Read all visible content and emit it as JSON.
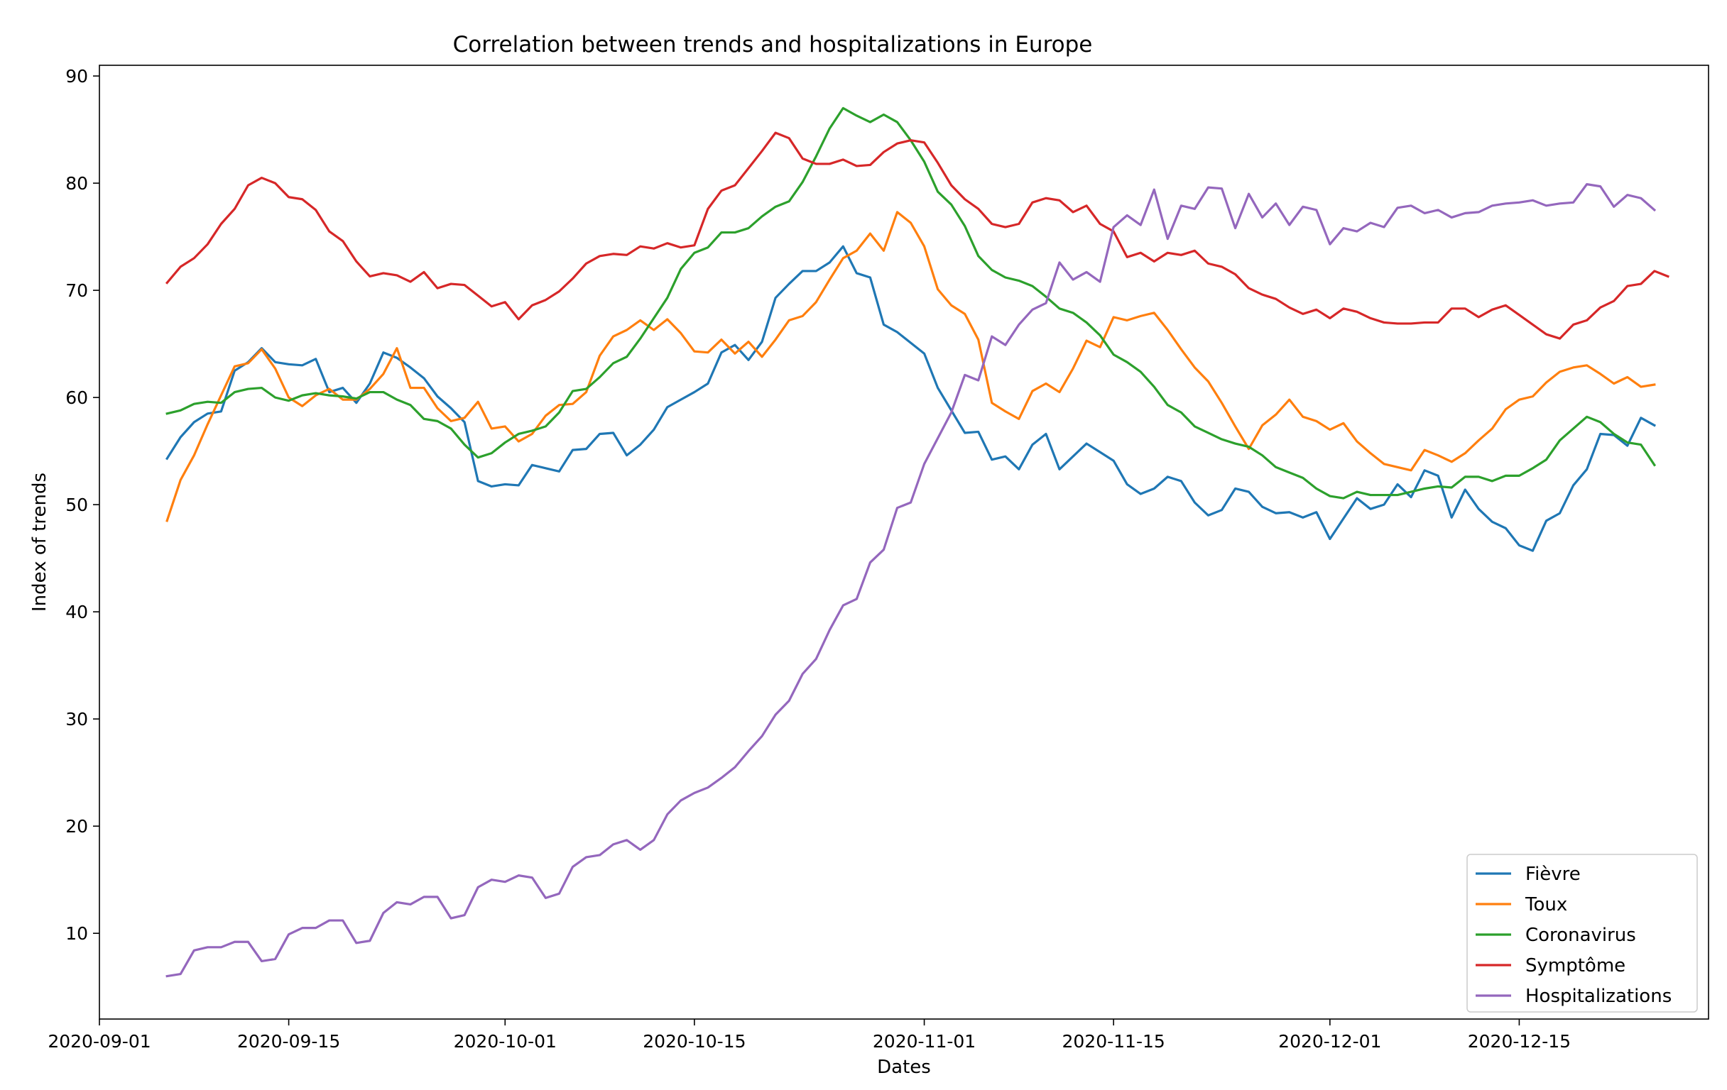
{
  "chart_data": {
    "type": "line",
    "title": "Correlation between trends and hospitalizations in Europe",
    "xlabel": "Dates",
    "ylabel": "Index of trends",
    "x_start": "2020-09-06",
    "x_end": "2020-12-23",
    "xlim": [
      "2020-09-01",
      "2020-12-29"
    ],
    "ylim": [
      2,
      91
    ],
    "x_ticks": [
      "2020-09-01",
      "2020-09-15",
      "2020-10-01",
      "2020-10-15",
      "2020-11-01",
      "2020-11-15",
      "2020-12-01",
      "2020-12-15"
    ],
    "y_ticks": [
      "10",
      "20",
      "30",
      "40",
      "50",
      "60",
      "70",
      "80",
      "90"
    ],
    "grid": false,
    "legend_position": "lower right",
    "series": [
      {
        "name": "Fièvre",
        "color": "#1f77b4",
        "values": [
          54.3,
          56.3,
          57.7,
          58.5,
          58.7,
          62.5,
          63.3,
          64.6,
          63.3,
          63.1,
          63.0,
          63.6,
          60.5,
          60.9,
          59.5,
          61.3,
          64.2,
          63.7,
          62.8,
          61.8,
          60.1,
          59.0,
          57.7,
          52.2,
          51.7,
          51.9,
          51.8,
          53.7,
          53.4,
          53.1,
          55.1,
          55.2,
          56.6,
          56.7,
          54.6,
          55.6,
          57.0,
          59.1,
          59.8,
          60.5,
          61.3,
          64.2,
          64.9,
          63.5,
          65.2,
          69.3,
          70.6,
          71.8,
          71.8,
          72.6,
          74.1,
          71.6,
          71.2,
          66.8,
          66.1,
          65.1,
          64.1,
          60.9,
          58.8,
          56.7,
          56.8,
          54.2,
          54.5,
          53.3,
          55.6,
          56.6,
          53.3,
          54.5,
          55.7,
          54.9,
          54.1,
          51.9,
          51.0,
          51.5,
          52.6,
          52.2,
          50.2,
          49.0,
          49.5,
          51.5,
          51.2,
          49.8,
          49.2,
          49.3,
          48.8,
          49.3,
          46.8,
          48.7,
          50.6,
          49.6,
          50.0,
          51.9,
          50.7,
          53.2,
          52.7,
          48.8,
          51.4,
          49.6,
          48.4,
          47.8,
          46.2,
          45.7,
          48.5,
          49.2,
          51.8,
          53.3,
          56.6,
          56.5,
          55.5,
          58.1,
          57.4
        ]
      },
      {
        "name": "Toux",
        "color": "#ff7f0e",
        "values": [
          48.5,
          52.3,
          54.6,
          57.5,
          60.2,
          62.9,
          63.2,
          64.5,
          62.7,
          60.0,
          59.2,
          60.2,
          60.8,
          59.8,
          59.8,
          60.8,
          62.2,
          64.6,
          60.9,
          60.9,
          59.0,
          57.8,
          58.1,
          59.6,
          57.1,
          57.3,
          55.9,
          56.6,
          58.3,
          59.3,
          59.4,
          60.5,
          63.9,
          65.7,
          66.3,
          67.2,
          66.3,
          67.3,
          66.0,
          64.3,
          64.2,
          65.4,
          64.1,
          65.2,
          63.8,
          65.4,
          67.2,
          67.6,
          68.9,
          71.0,
          73.0,
          73.7,
          75.3,
          73.7,
          77.3,
          76.3,
          74.1,
          70.1,
          68.6,
          67.8,
          65.4,
          59.5,
          58.7,
          58.0,
          60.6,
          61.3,
          60.5,
          62.7,
          65.3,
          64.7,
          67.5,
          67.2,
          67.6,
          67.9,
          66.3,
          64.5,
          62.8,
          61.5,
          59.5,
          57.3,
          55.2,
          57.4,
          58.4,
          59.8,
          58.2,
          57.8,
          57.0,
          57.6,
          55.9,
          54.8,
          53.8,
          53.5,
          53.2,
          55.1,
          54.6,
          54.0,
          54.8,
          56.0,
          57.1,
          58.9,
          59.8,
          60.1,
          61.4,
          62.4,
          62.8,
          63.0,
          62.2,
          61.3,
          61.9,
          61.0,
          61.2
        ]
      },
      {
        "name": "Coronavirus",
        "color": "#2ca02c",
        "values": [
          58.5,
          58.8,
          59.4,
          59.6,
          59.5,
          60.5,
          60.8,
          60.9,
          60.0,
          59.7,
          60.2,
          60.4,
          60.2,
          60.1,
          59.9,
          60.5,
          60.5,
          59.8,
          59.3,
          58.0,
          57.8,
          57.1,
          55.6,
          54.4,
          54.8,
          55.8,
          56.6,
          56.9,
          57.3,
          58.6,
          60.6,
          60.8,
          61.9,
          63.2,
          63.8,
          65.5,
          67.4,
          69.3,
          72.0,
          73.5,
          74.0,
          75.4,
          75.4,
          75.8,
          76.9,
          77.8,
          78.3,
          80.1,
          82.5,
          85.1,
          87.0,
          86.3,
          85.7,
          86.4,
          85.7,
          84.0,
          82.0,
          79.2,
          78.0,
          76.0,
          73.2,
          71.9,
          71.2,
          70.9,
          70.4,
          69.4,
          68.3,
          67.9,
          67.0,
          65.8,
          64.0,
          63.3,
          62.4,
          61.0,
          59.3,
          58.6,
          57.3,
          56.7,
          56.1,
          55.7,
          55.4,
          54.6,
          53.5,
          53.0,
          52.5,
          51.5,
          50.8,
          50.6,
          51.2,
          50.9,
          50.9,
          50.9,
          51.2,
          51.5,
          51.7,
          51.6,
          52.6,
          52.6,
          52.2,
          52.7,
          52.7,
          53.4,
          54.2,
          56.0,
          57.1,
          58.2,
          57.7,
          56.6,
          55.8,
          55.6,
          53.7
        ]
      },
      {
        "name": "Symptôme",
        "color": "#d62728",
        "values": [
          70.7,
          72.2,
          73.0,
          74.3,
          76.2,
          77.6,
          79.8,
          80.5,
          80.0,
          78.7,
          78.5,
          77.5,
          75.5,
          74.6,
          72.7,
          71.3,
          71.6,
          71.4,
          70.8,
          71.7,
          70.2,
          70.6,
          70.5,
          69.5,
          68.5,
          68.9,
          67.3,
          68.6,
          69.1,
          69.9,
          71.1,
          72.5,
          73.2,
          73.4,
          73.3,
          74.1,
          73.9,
          74.4,
          74.0,
          74.2,
          77.6,
          79.3,
          79.8,
          81.4,
          83.0,
          84.7,
          84.2,
          82.3,
          81.8,
          81.8,
          82.2,
          81.6,
          81.7,
          82.9,
          83.7,
          84.0,
          83.8,
          81.9,
          79.8,
          78.5,
          77.6,
          76.2,
          75.9,
          76.2,
          78.2,
          78.6,
          78.4,
          77.3,
          77.9,
          76.2,
          75.5,
          73.1,
          73.5,
          72.7,
          73.5,
          73.3,
          73.7,
          72.5,
          72.2,
          71.5,
          70.2,
          69.6,
          69.2,
          68.4,
          67.8,
          68.2,
          67.4,
          68.3,
          68.0,
          67.4,
          67.0,
          66.9,
          66.9,
          67.0,
          67.0,
          68.3,
          68.3,
          67.5,
          68.2,
          68.6,
          67.7,
          66.8,
          65.9,
          65.5,
          66.8,
          67.2,
          68.4,
          69.0,
          70.4,
          70.6,
          71.8,
          71.3
        ]
      },
      {
        "name": "Hospitalizations",
        "color": "#9467bd",
        "values": [
          6.0,
          6.2,
          8.4,
          8.7,
          8.7,
          9.2,
          9.2,
          7.4,
          7.6,
          9.9,
          10.5,
          10.5,
          11.2,
          11.2,
          9.1,
          9.3,
          11.9,
          12.9,
          12.7,
          13.4,
          13.4,
          11.4,
          11.7,
          14.3,
          15.0,
          14.8,
          15.4,
          15.2,
          13.3,
          13.7,
          16.2,
          17.1,
          17.3,
          18.3,
          18.7,
          17.8,
          18.7,
          21.1,
          22.4,
          23.1,
          23.6,
          24.5,
          25.5,
          27.0,
          28.4,
          30.4,
          31.7,
          34.2,
          35.6,
          38.3,
          40.6,
          41.2,
          44.6,
          45.8,
          49.7,
          50.2,
          53.8,
          56.2,
          58.6,
          62.1,
          61.6,
          65.7,
          64.9,
          66.8,
          68.2,
          68.8,
          72.6,
          71.0,
          71.7,
          70.8,
          75.9,
          77.0,
          76.1,
          79.4,
          74.8,
          77.9,
          77.6,
          79.6,
          79.5,
          75.8,
          79.0,
          76.8,
          78.1,
          76.1,
          77.8,
          77.5,
          74.3,
          75.8,
          75.5,
          76.3,
          75.9,
          77.7,
          77.9,
          77.2,
          77.5,
          76.8,
          77.2,
          77.3,
          77.9,
          78.1,
          78.2,
          78.4,
          77.9,
          78.1,
          78.2,
          79.9,
          79.7,
          77.8,
          78.9,
          78.6,
          77.5
        ]
      }
    ]
  }
}
